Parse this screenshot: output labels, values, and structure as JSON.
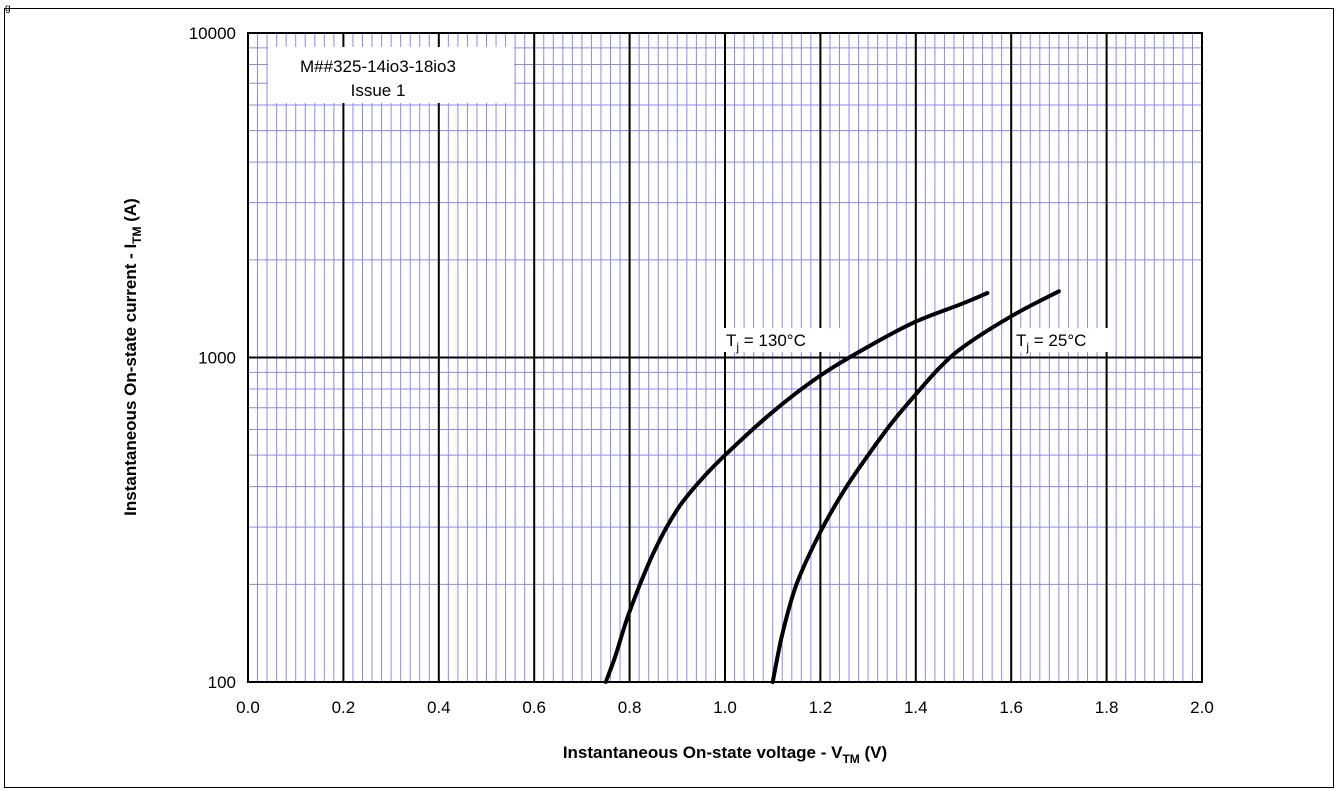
{
  "corner_mark": "g",
  "chart_data": {
    "type": "line",
    "xlabel": {
      "main": "Instantaneous  On-state voltage - V",
      "sub": "TM",
      "unit": " (V)"
    },
    "ylabel": {
      "main": "Instantaneous  On-state current - I",
      "sub": "TM",
      "unit": " (A)"
    },
    "x_scale": "linear",
    "y_scale": "log",
    "xlim": [
      0.0,
      2.0
    ],
    "ylim": [
      100,
      10000
    ],
    "x_ticks": [
      "0.0",
      "0.2",
      "0.4",
      "0.6",
      "0.8",
      "1.0",
      "1.2",
      "1.4",
      "1.6",
      "1.8",
      "2.0"
    ],
    "y_ticks": [
      "100",
      "1000",
      "10000"
    ],
    "grid": true,
    "note": [
      "M##325-14io3-18io3",
      "Issue 1"
    ],
    "series": [
      {
        "name": {
          "main": "T",
          "sub": "j",
          "rest": " = 130°C"
        },
        "x": [
          0.75,
          0.77,
          0.8,
          0.85,
          0.9,
          0.95,
          1.0,
          1.1,
          1.2,
          1.3,
          1.4,
          1.5,
          1.55
        ],
        "y": [
          100,
          120,
          165,
          250,
          340,
          420,
          500,
          680,
          880,
          1080,
          1290,
          1470,
          1580
        ]
      },
      {
        "name": {
          "main": "T",
          "sub": "j",
          "rest": " = 25°C"
        },
        "x": [
          1.1,
          1.12,
          1.15,
          1.2,
          1.25,
          1.3,
          1.35,
          1.4,
          1.45,
          1.5,
          1.6,
          1.7
        ],
        "y": [
          100,
          140,
          200,
          290,
          390,
          500,
          630,
          770,
          930,
          1080,
          1340,
          1600
        ]
      }
    ]
  }
}
